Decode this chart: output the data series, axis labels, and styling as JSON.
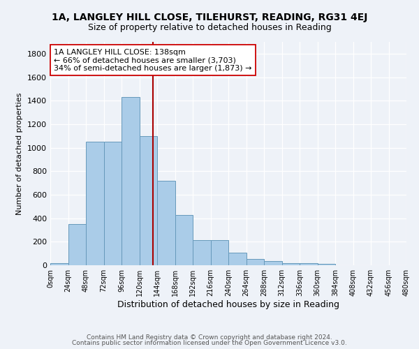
{
  "title": "1A, LANGLEY HILL CLOSE, TILEHURST, READING, RG31 4EJ",
  "subtitle": "Size of property relative to detached houses in Reading",
  "xlabel": "Distribution of detached houses by size in Reading",
  "ylabel": "Number of detached properties",
  "bin_edges": [
    0,
    24,
    48,
    72,
    96,
    120,
    144,
    168,
    192,
    216,
    240,
    264,
    288,
    312,
    336,
    360,
    384,
    408,
    432,
    456,
    480
  ],
  "bar_values": [
    20,
    350,
    1050,
    1050,
    1430,
    1100,
    720,
    430,
    215,
    215,
    105,
    55,
    35,
    20,
    15,
    10,
    0,
    0,
    0,
    0
  ],
  "bar_color": "#aacce8",
  "bar_edge_color": "#6699bb",
  "vline_x": 138,
  "vline_color": "#aa0000",
  "annotation_text": "1A LANGLEY HILL CLOSE: 138sqm\n← 66% of detached houses are smaller (3,703)\n34% of semi-detached houses are larger (1,873) →",
  "ylim": [
    0,
    1900
  ],
  "yticks": [
    0,
    200,
    400,
    600,
    800,
    1000,
    1200,
    1400,
    1600,
    1800
  ],
  "xtick_labels": [
    "0sqm",
    "24sqm",
    "48sqm",
    "72sqm",
    "96sqm",
    "120sqm",
    "144sqm",
    "168sqm",
    "192sqm",
    "216sqm",
    "240sqm",
    "264sqm",
    "288sqm",
    "312sqm",
    "336sqm",
    "360sqm",
    "384sqm",
    "408sqm",
    "432sqm",
    "456sqm",
    "480sqm"
  ],
  "footer_line1": "Contains HM Land Registry data © Crown copyright and database right 2024.",
  "footer_line2": "Contains public sector information licensed under the Open Government Licence v3.0.",
  "bg_color": "#eef2f8",
  "title_fontsize": 10,
  "subtitle_fontsize": 9,
  "annotation_fontsize": 8,
  "xlabel_fontsize": 9,
  "ylabel_fontsize": 8,
  "footer_fontsize": 6.5
}
